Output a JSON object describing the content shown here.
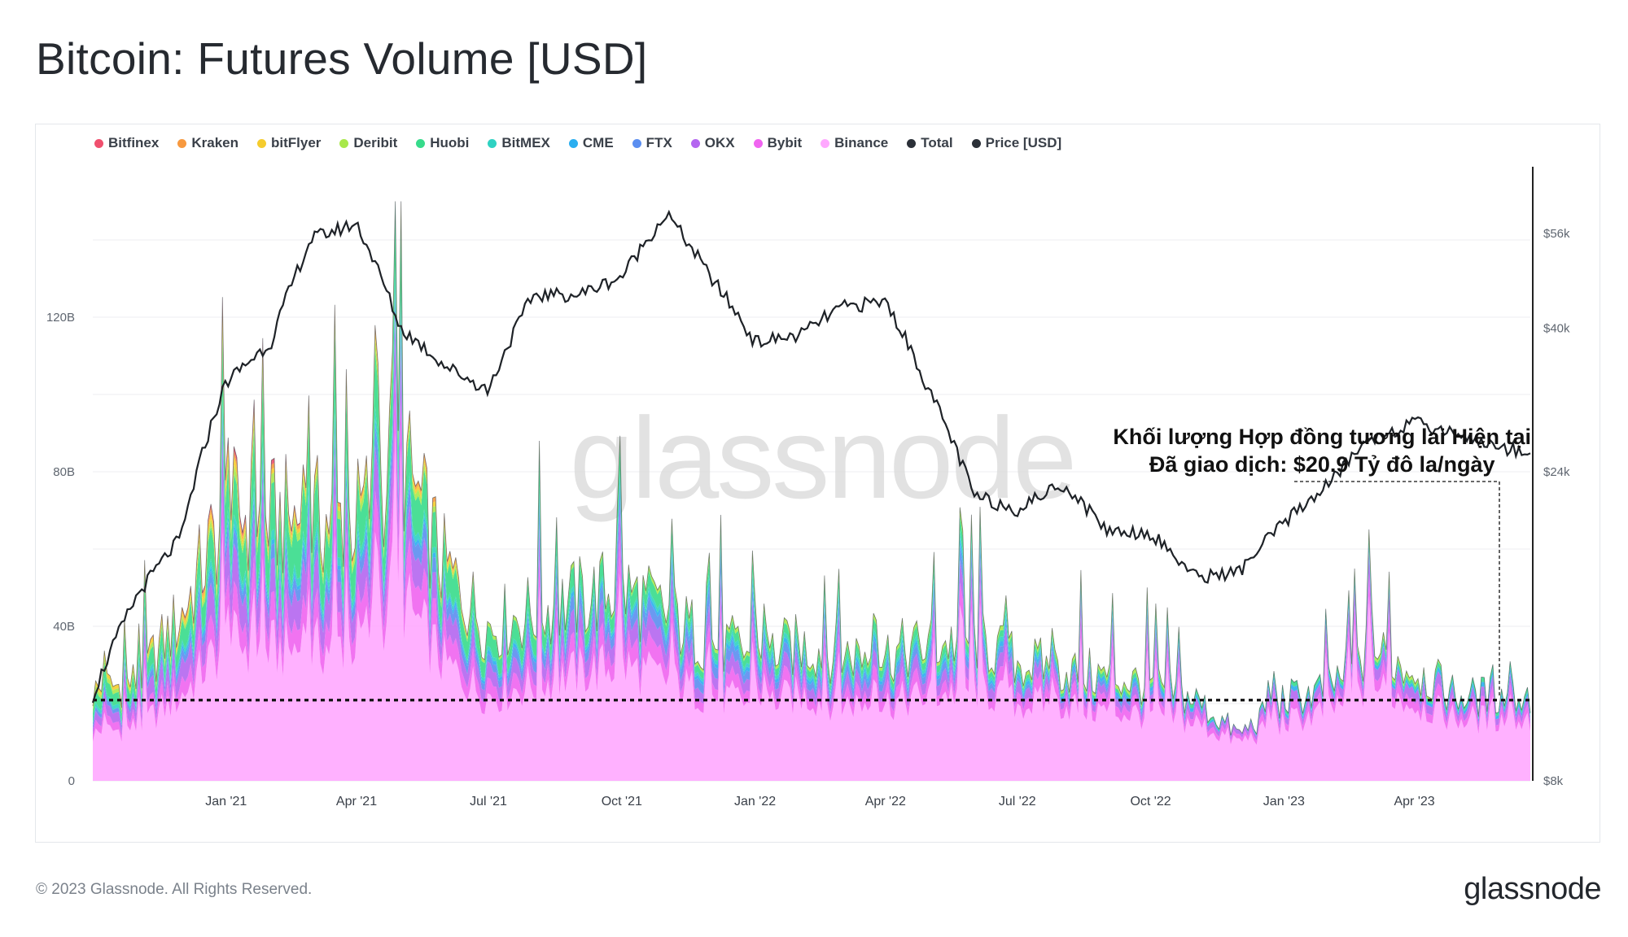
{
  "title": "Bitcoin: Futures Volume [USD]",
  "copyright": "© 2023 Glassnode. All Rights Reserved.",
  "brand": "glassnode",
  "watermark": "glassnode",
  "annotation": {
    "line1": "Khối lượng Hợp đồng tương lai Hiện tại",
    "line2": "Đã giao dịch: $20.9 Tỷ đô la/ngày"
  },
  "legend": [
    {
      "name": "Bitfinex",
      "color": "#f0506e"
    },
    {
      "name": "Kraken",
      "color": "#f7993f"
    },
    {
      "name": "bitFlyer",
      "color": "#f5cc2e"
    },
    {
      "name": "Deribit",
      "color": "#a8e84a"
    },
    {
      "name": "Huobi",
      "color": "#37db8b"
    },
    {
      "name": "BitMEX",
      "color": "#2fd2c2"
    },
    {
      "name": "CME",
      "color": "#2aaef0"
    },
    {
      "name": "FTX",
      "color": "#5b8ef0"
    },
    {
      "name": "OKX",
      "color": "#b466f0"
    },
    {
      "name": "Bybit",
      "color": "#f064f0"
    },
    {
      "name": "Binance",
      "color": "#ffa8ff"
    },
    {
      "name": "Total",
      "color": "#2b3038"
    },
    {
      "name": "Price [USD]",
      "color": "#2b3038"
    }
  ],
  "chart_data": {
    "type": "area",
    "stacked": true,
    "x_ticks": [
      "Jan '21",
      "Apr '21",
      "Jul '21",
      "Oct '21",
      "Jan '22",
      "Apr '22",
      "Jul '22",
      "Oct '22",
      "Jan '23",
      "Apr '23"
    ],
    "y_left_ticks": [
      "0",
      "40B",
      "80B",
      "120B"
    ],
    "y_right_ticks": [
      "$8k",
      "$24k",
      "$40k",
      "$56k"
    ],
    "y_left_range": [
      0,
      160
    ],
    "y_right_range": [
      8000,
      72000
    ],
    "y_right_scale": "log",
    "grid": true,
    "legend_position": "top",
    "reference_line": 20.9,
    "dates": [
      "2020-10-01",
      "2020-11-01",
      "2020-12-01",
      "2021-01-01",
      "2021-02-01",
      "2021-03-01",
      "2021-04-01",
      "2021-05-01",
      "2021-06-01",
      "2021-07-01",
      "2021-08-01",
      "2021-09-01",
      "2021-10-01",
      "2021-11-01",
      "2021-12-01",
      "2022-01-01",
      "2022-02-01",
      "2022-03-01",
      "2022-04-01",
      "2022-05-01",
      "2022-06-01",
      "2022-07-01",
      "2022-08-01",
      "2022-09-01",
      "2022-10-01",
      "2022-11-01",
      "2022-12-01",
      "2023-01-01",
      "2023-02-01",
      "2023-03-01",
      "2023-04-01",
      "2023-05-01",
      "2023-06-01"
    ],
    "series": [
      {
        "name": "Binance",
        "values": [
          12,
          14,
          22,
          36,
          34,
          34,
          36,
          48,
          30,
          22,
          25,
          28,
          30,
          26,
          22,
          20,
          22,
          20,
          20,
          22,
          24,
          20,
          20,
          18,
          17,
          15,
          10,
          15,
          18,
          25,
          20,
          16,
          16
        ]
      },
      {
        "name": "Bybit",
        "values": [
          2,
          2,
          4,
          6,
          6,
          6,
          6,
          8,
          5,
          4,
          4,
          4,
          5,
          4,
          3,
          3,
          3,
          3,
          3,
          3,
          3,
          3,
          3,
          3,
          2,
          2,
          1,
          2,
          2,
          3,
          3,
          2,
          2
        ]
      },
      {
        "name": "OKX",
        "values": [
          2,
          3,
          5,
          8,
          7,
          8,
          7,
          8,
          5,
          4,
          4,
          5,
          5,
          4,
          3,
          3,
          3,
          3,
          3,
          3,
          3,
          3,
          2,
          2,
          2,
          2,
          1,
          2,
          2,
          3,
          3,
          2,
          2
        ]
      },
      {
        "name": "FTX",
        "values": [
          1,
          1,
          2,
          3,
          3,
          3,
          3,
          4,
          3,
          2,
          3,
          3,
          3,
          3,
          3,
          2,
          2,
          2,
          2,
          2,
          2,
          1,
          1,
          1,
          1,
          0,
          0,
          0,
          0,
          0,
          0,
          0,
          0
        ]
      },
      {
        "name": "CME",
        "values": [
          0,
          0,
          1,
          1,
          1,
          1,
          1,
          1,
          1,
          1,
          1,
          1,
          1,
          1,
          1,
          1,
          1,
          1,
          1,
          1,
          1,
          1,
          1,
          1,
          1,
          1,
          0,
          1,
          1,
          1,
          1,
          1,
          1
        ]
      },
      {
        "name": "BitMEX",
        "values": [
          1,
          1,
          1,
          2,
          2,
          2,
          2,
          2,
          1,
          1,
          1,
          1,
          1,
          1,
          1,
          1,
          1,
          1,
          1,
          1,
          1,
          1,
          0,
          0,
          0,
          0,
          0,
          0,
          0,
          0,
          0,
          0,
          0
        ]
      },
      {
        "name": "Huobi",
        "values": [
          3,
          3,
          5,
          8,
          10,
          10,
          9,
          10,
          7,
          5,
          5,
          4,
          4,
          3,
          2,
          2,
          2,
          2,
          2,
          2,
          2,
          1,
          1,
          1,
          1,
          1,
          0,
          1,
          1,
          1,
          1,
          1,
          1
        ]
      },
      {
        "name": "Deribit",
        "values": [
          1,
          1,
          1,
          2,
          2,
          2,
          2,
          2,
          1,
          1,
          1,
          1,
          1,
          1,
          1,
          1,
          1,
          1,
          1,
          1,
          1,
          1,
          1,
          1,
          1,
          0,
          0,
          0,
          0,
          1,
          1,
          0,
          0
        ]
      },
      {
        "name": "bitFlyer",
        "values": [
          1,
          1,
          1,
          2,
          1,
          1,
          1,
          1,
          1,
          0,
          0,
          0,
          0,
          0,
          0,
          0,
          0,
          0,
          0,
          0,
          0,
          0,
          0,
          0,
          0,
          0,
          0,
          0,
          0,
          0,
          0,
          0,
          0
        ]
      },
      {
        "name": "Kraken",
        "values": [
          0,
          0,
          1,
          1,
          1,
          1,
          1,
          1,
          1,
          0,
          0,
          0,
          0,
          0,
          0,
          0,
          0,
          0,
          0,
          0,
          0,
          0,
          0,
          0,
          0,
          0,
          0,
          0,
          0,
          0,
          0,
          0,
          0
        ]
      },
      {
        "name": "Bitfinex",
        "values": [
          0,
          0,
          0,
          1,
          1,
          0,
          0,
          0,
          0,
          0,
          0,
          0,
          0,
          0,
          0,
          0,
          0,
          0,
          0,
          0,
          0,
          0,
          0,
          0,
          0,
          0,
          0,
          0,
          0,
          0,
          0,
          0,
          0
        ]
      },
      {
        "name": "Price [USD]",
        "axis": "right",
        "values": [
          10800,
          15500,
          19000,
          33000,
          38000,
          55000,
          58000,
          40000,
          35000,
          32000,
          45000,
          45000,
          48000,
          60000,
          48000,
          38000,
          39000,
          43000,
          44000,
          32000,
          22000,
          21000,
          23000,
          19500,
          19300,
          16500,
          16800,
          20000,
          23000,
          27000,
          28500,
          27500,
          26000
        ]
      }
    ]
  }
}
